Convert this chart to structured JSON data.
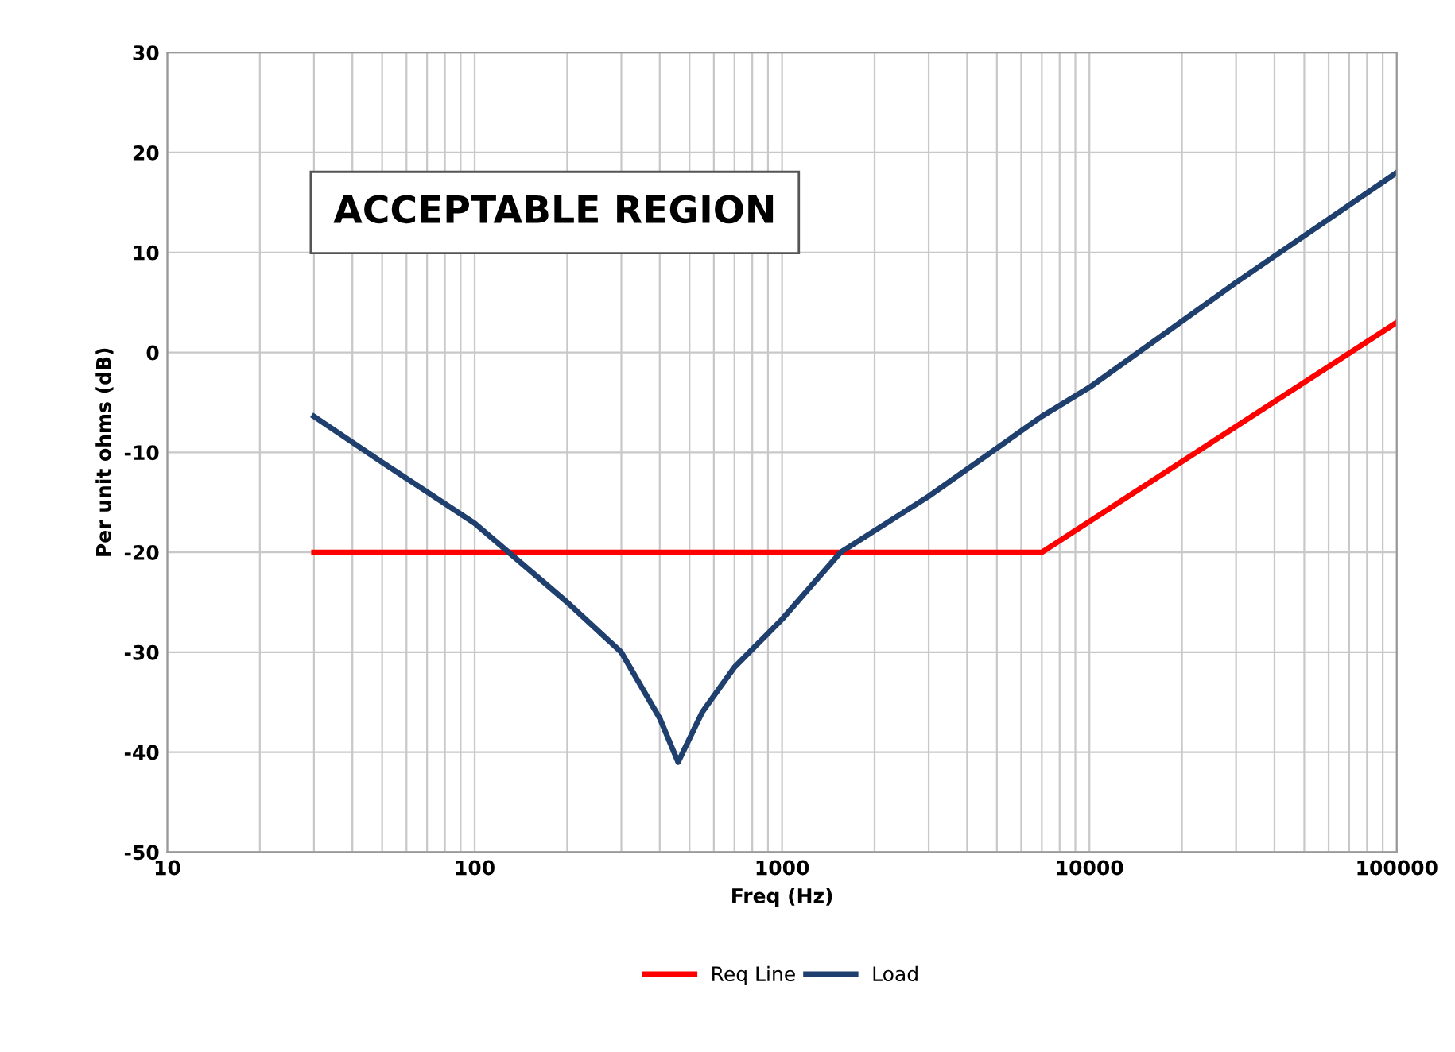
{
  "chart_data": {
    "type": "line",
    "xlabel": "Freq (Hz)",
    "ylabel": "Per unit ohms (dB)",
    "log": "x",
    "xlim": [
      10,
      100000
    ],
    "xticks": [
      10,
      100,
      1000,
      10000,
      100000
    ],
    "ylim": [
      -50,
      30
    ],
    "yticks": [
      -50,
      -40,
      -30,
      -20,
      -10,
      0,
      10,
      20,
      30
    ],
    "grid": true,
    "legend": "bottom",
    "marker": "none",
    "line_style": "solid",
    "annotations": [
      "ACCEPTABLE REGION"
    ],
    "series": [
      {
        "name": "Req Line",
        "color": "#ff0000",
        "x": [
          30,
          7000,
          100000
        ],
        "values": [
          -20,
          -20,
          3
        ]
      },
      {
        "name": "Load",
        "color": "#1f3f6e",
        "x": [
          30,
          50,
          100,
          200,
          300,
          400,
          459,
          550,
          700,
          1000,
          1550,
          3000,
          7000,
          10000,
          30000,
          100000
        ],
        "values": [
          -6.4,
          -11,
          -17.1,
          -25,
          -30,
          -36.6,
          -41,
          -36,
          -31.5,
          -26.7,
          -20,
          -14.4,
          -6.4,
          -3.5,
          7,
          18
        ]
      }
    ]
  }
}
